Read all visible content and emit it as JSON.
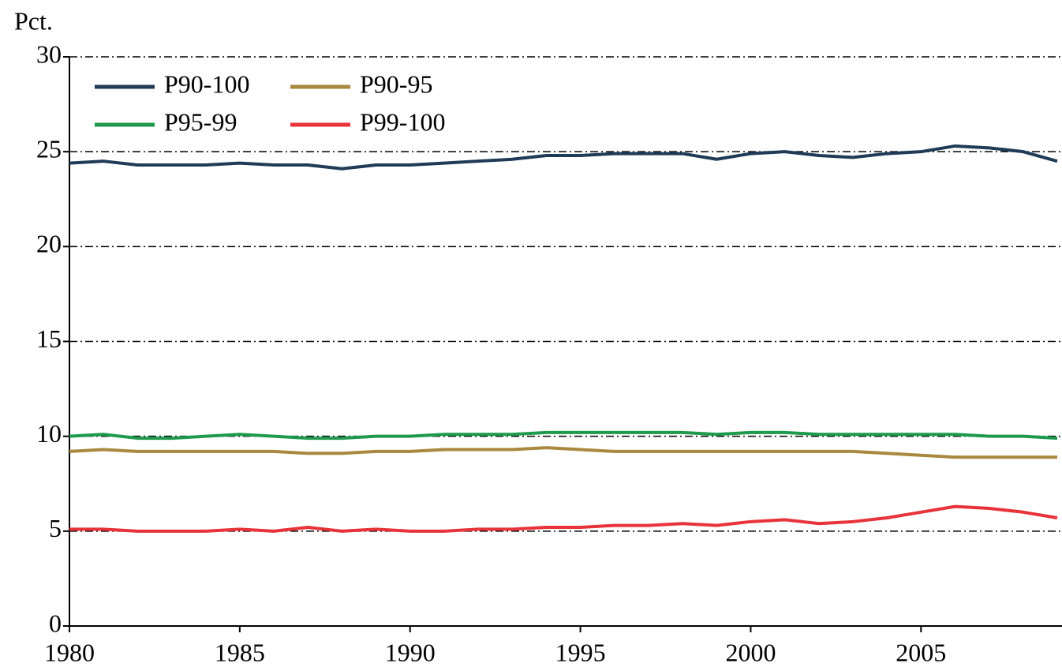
{
  "chart_data": {
    "type": "line",
    "y_label": "Pct.",
    "x": [
      1980,
      1981,
      1982,
      1983,
      1984,
      1985,
      1986,
      1987,
      1988,
      1989,
      1990,
      1991,
      1992,
      1993,
      1994,
      1995,
      1996,
      1997,
      1998,
      1999,
      2000,
      2001,
      2002,
      2003,
      2004,
      2005,
      2006,
      2007,
      2008,
      2009
    ],
    "series": [
      {
        "name": "P90-100",
        "color": "#1f3b57",
        "values": [
          24.4,
          24.5,
          24.3,
          24.3,
          24.3,
          24.4,
          24.3,
          24.3,
          24.1,
          24.3,
          24.3,
          24.4,
          24.5,
          24.6,
          24.8,
          24.8,
          24.9,
          24.9,
          24.9,
          24.6,
          24.9,
          25.0,
          24.8,
          24.7,
          24.9,
          25.0,
          25.3,
          25.2,
          25.0,
          24.5
        ]
      },
      {
        "name": "P90-95",
        "color": "#a8893f",
        "values": [
          9.2,
          9.3,
          9.2,
          9.2,
          9.2,
          9.2,
          9.2,
          9.1,
          9.1,
          9.2,
          9.2,
          9.3,
          9.3,
          9.3,
          9.4,
          9.3,
          9.2,
          9.2,
          9.2,
          9.2,
          9.2,
          9.2,
          9.2,
          9.2,
          9.1,
          9.0,
          8.9,
          8.9,
          8.9,
          8.9
        ]
      },
      {
        "name": "P95-99",
        "color": "#1f9a4c",
        "values": [
          10.0,
          10.1,
          9.9,
          9.9,
          10.0,
          10.1,
          10.0,
          9.9,
          9.9,
          10.0,
          10.0,
          10.1,
          10.1,
          10.1,
          10.2,
          10.2,
          10.2,
          10.2,
          10.2,
          10.1,
          10.2,
          10.2,
          10.1,
          10.1,
          10.1,
          10.1,
          10.1,
          10.0,
          10.0,
          9.9
        ]
      },
      {
        "name": "P99-100",
        "color": "#e8333a",
        "values": [
          5.1,
          5.1,
          5.0,
          5.0,
          5.0,
          5.1,
          5.0,
          5.2,
          5.0,
          5.1,
          5.0,
          5.0,
          5.1,
          5.1,
          5.2,
          5.2,
          5.3,
          5.3,
          5.4,
          5.3,
          5.5,
          5.6,
          5.4,
          5.5,
          5.7,
          6.0,
          6.3,
          6.2,
          6.0,
          5.7
        ]
      }
    ],
    "xlim": [
      1980,
      2009
    ],
    "xticks": [
      1980,
      1985,
      1990,
      1995,
      2000,
      2005
    ],
    "ylim": [
      0,
      30
    ],
    "yticks": [
      0,
      5,
      10,
      15,
      20,
      25,
      30
    ],
    "grid": true,
    "legend": "upper left"
  }
}
